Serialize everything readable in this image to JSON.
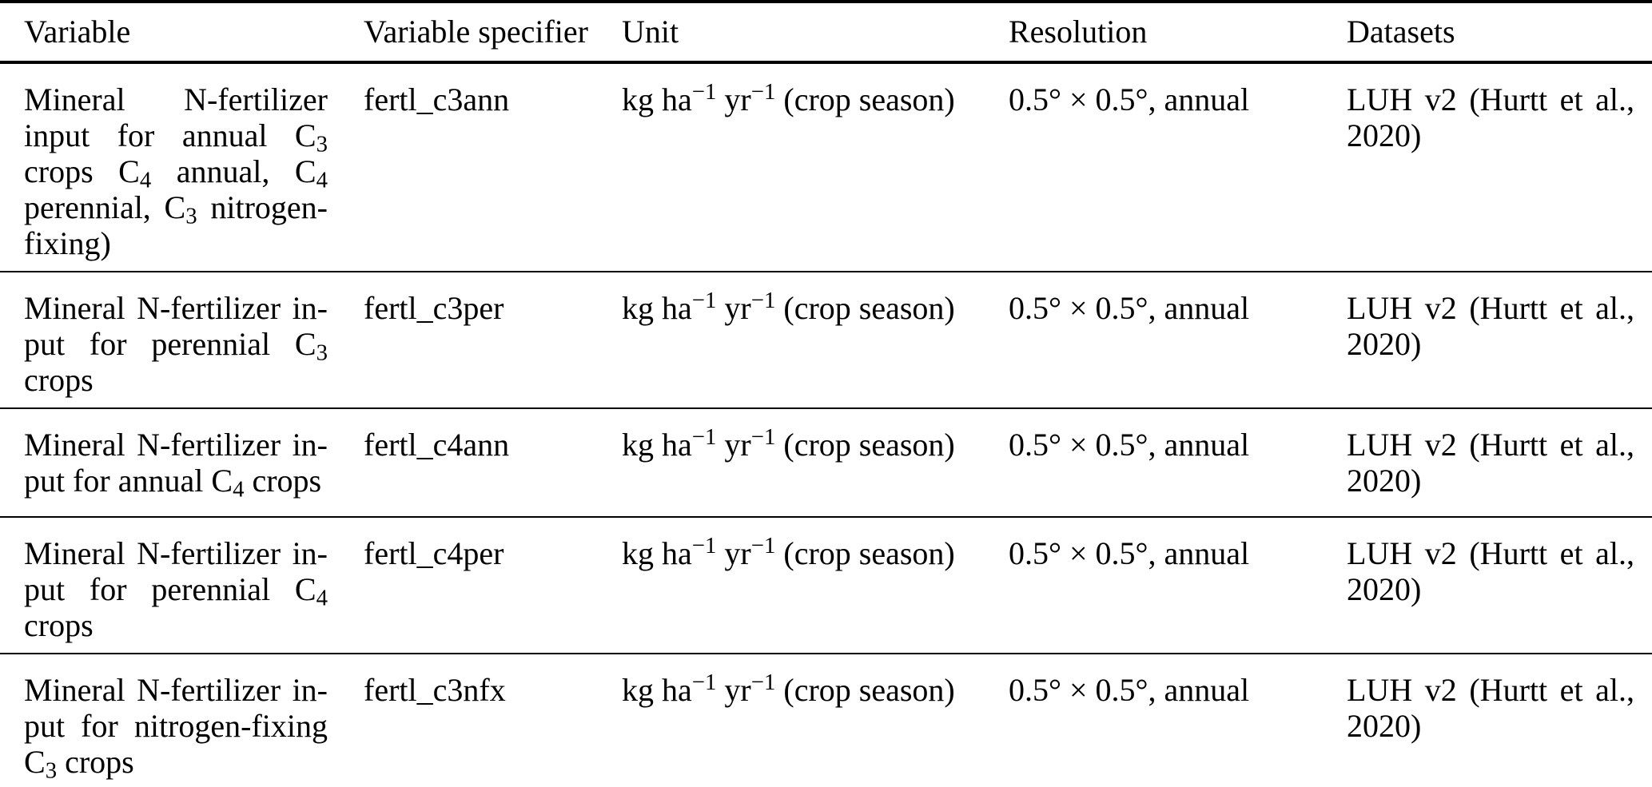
{
  "page": {
    "background_color": "#ffffff",
    "text_color": "#000000",
    "rule_color": "#000000"
  },
  "table": {
    "columns": [
      "Variable",
      "Variable specifier",
      "Unit",
      "Resolution",
      "Datasets"
    ],
    "rows": [
      {
        "variable_lines": [
          [
            {
              "t": "Mineral N-fertilizer"
            }
          ],
          [
            {
              "t": "input for annual C"
            },
            {
              "sub": "3"
            }
          ],
          [
            {
              "t": "crops C"
            },
            {
              "sub": "4"
            },
            {
              "t": " annual, C"
            },
            {
              "sub": "4"
            }
          ],
          [
            {
              "t": "perennial, C"
            },
            {
              "sub": "3"
            },
            {
              "t": " nitrogen-"
            }
          ],
          [
            {
              "t": "fixing)"
            }
          ]
        ],
        "specifier": "fertl_c3ann",
        "unit_lines": [
          [
            {
              "t": "kg ha"
            },
            {
              "sup": "−1"
            },
            {
              "t": " yr"
            },
            {
              "sup": "−1"
            },
            {
              "t": " (crop season)"
            }
          ]
        ],
        "resolution": "0.5° × 0.5°, annual",
        "datasets_lines": [
          [
            {
              "t": "LUH v2 (Hurtt et al.,"
            }
          ],
          [
            {
              "t": "2020)"
            }
          ]
        ]
      },
      {
        "variable_lines": [
          [
            {
              "t": "Mineral N-fertilizer in-"
            }
          ],
          [
            {
              "t": "put for perennial C"
            },
            {
              "sub": "3"
            }
          ],
          [
            {
              "t": "crops"
            }
          ]
        ],
        "specifier": "fertl_c3per",
        "unit_lines": [
          [
            {
              "t": "kg ha"
            },
            {
              "sup": "−1"
            },
            {
              "t": " yr"
            },
            {
              "sup": "−1"
            },
            {
              "t": " (crop season)"
            }
          ]
        ],
        "resolution": "0.5° × 0.5°, annual",
        "datasets_lines": [
          [
            {
              "t": "LUH v2 (Hurtt et al.,"
            }
          ],
          [
            {
              "t": "2020)"
            }
          ]
        ]
      },
      {
        "variable_lines": [
          [
            {
              "t": "Mineral N-fertilizer in-"
            }
          ],
          [
            {
              "t": "put for annual C"
            },
            {
              "sub": "4"
            },
            {
              "t": " crops"
            }
          ]
        ],
        "specifier": "fertl_c4ann",
        "unit_lines": [
          [
            {
              "t": "kg ha"
            },
            {
              "sup": "−1"
            },
            {
              "t": " yr"
            },
            {
              "sup": "−1"
            },
            {
              "t": " (crop season)"
            }
          ]
        ],
        "resolution": "0.5° × 0.5°, annual",
        "datasets_lines": [
          [
            {
              "t": "LUH v2 (Hurtt et al.,"
            }
          ],
          [
            {
              "t": "2020)"
            }
          ]
        ]
      },
      {
        "variable_lines": [
          [
            {
              "t": "Mineral N-fertilizer in-"
            }
          ],
          [
            {
              "t": "put for perennial C"
            },
            {
              "sub": "4"
            }
          ],
          [
            {
              "t": "crops"
            }
          ]
        ],
        "specifier": "fertl_c4per",
        "unit_lines": [
          [
            {
              "t": "kg ha"
            },
            {
              "sup": "−1"
            },
            {
              "t": " yr"
            },
            {
              "sup": "−1"
            },
            {
              "t": " (crop season)"
            }
          ]
        ],
        "resolution": "0.5° × 0.5°, annual",
        "datasets_lines": [
          [
            {
              "t": "LUH v2 (Hurtt et al.,"
            }
          ],
          [
            {
              "t": "2020)"
            }
          ]
        ]
      },
      {
        "variable_lines": [
          [
            {
              "t": "Mineral N-fertilizer in-"
            }
          ],
          [
            {
              "t": "put for nitrogen-fixing"
            }
          ],
          [
            {
              "t": "C"
            },
            {
              "sub": "3"
            },
            {
              "t": " crops"
            }
          ]
        ],
        "specifier": "fertl_c3nfx",
        "unit_lines": [
          [
            {
              "t": "kg ha"
            },
            {
              "sup": "−1"
            },
            {
              "t": " yr"
            },
            {
              "sup": "−1"
            },
            {
              "t": " (crop season)"
            }
          ]
        ],
        "resolution": "0.5° × 0.5°, annual",
        "datasets_lines": [
          [
            {
              "t": "LUH v2 (Hurtt et al.,"
            }
          ],
          [
            {
              "t": "2020)"
            }
          ]
        ]
      }
    ]
  }
}
